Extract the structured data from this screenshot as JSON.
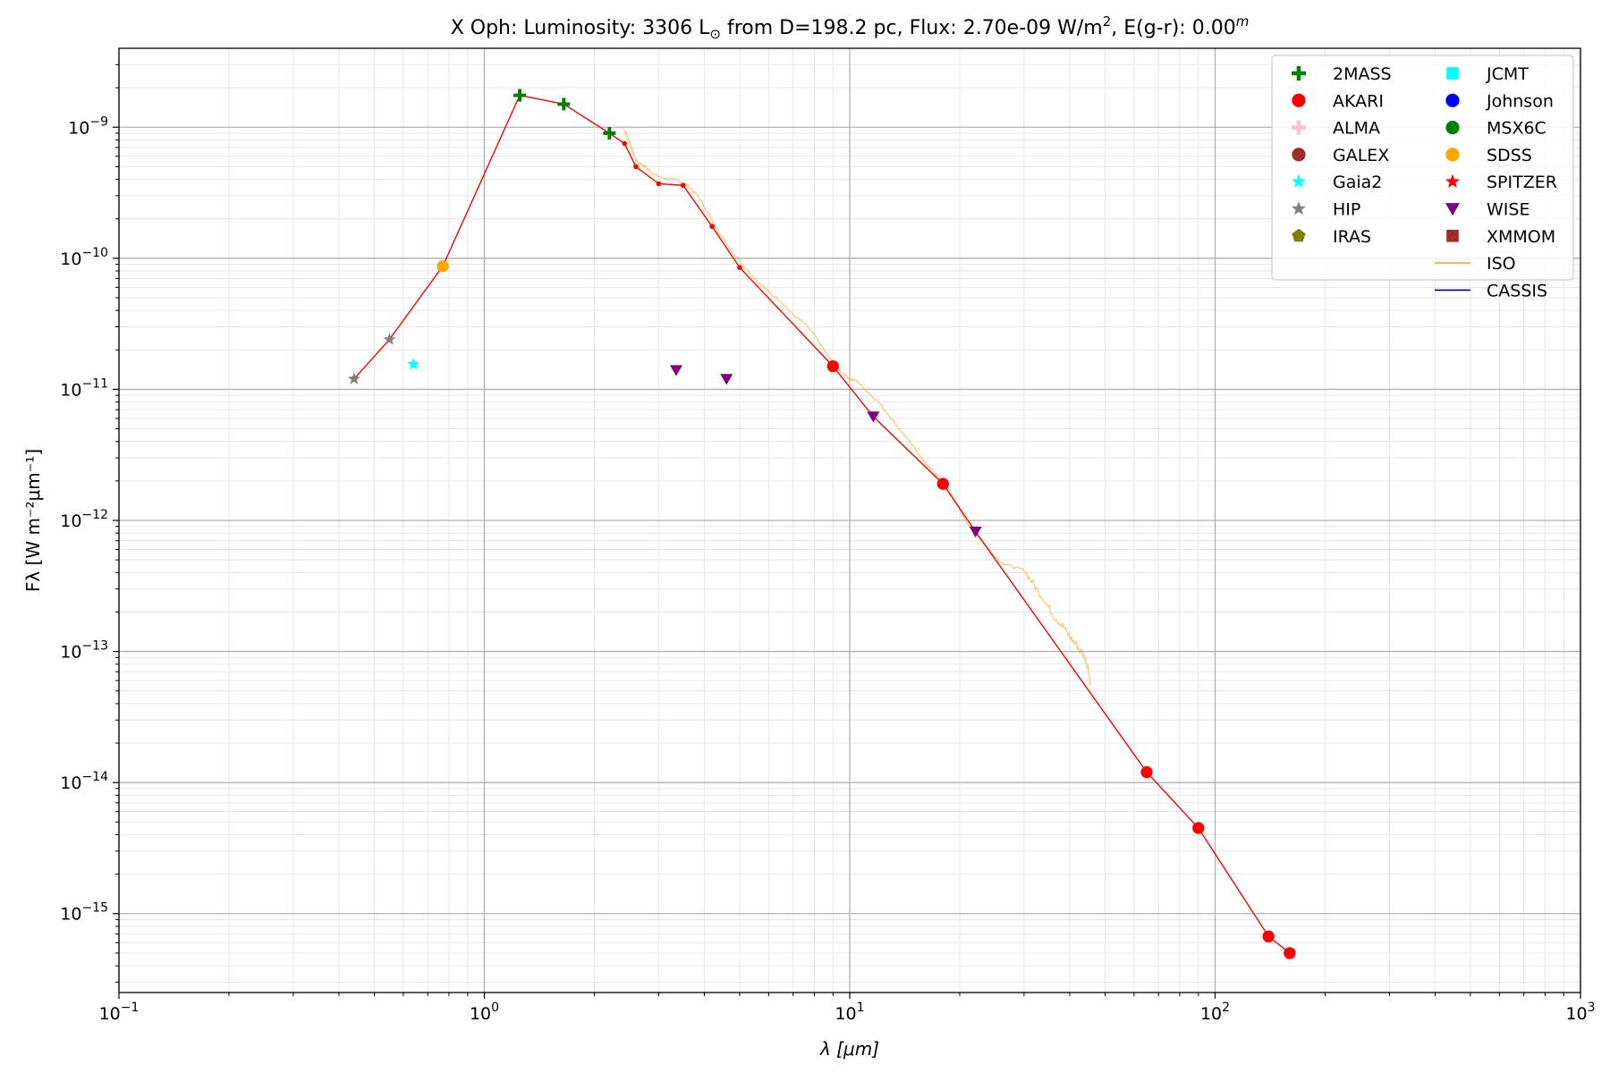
{
  "chart_data": {
    "type": "scatter",
    "title": "X Oph:  Luminosity: 3306 L⊙ from D=198.2 pc, Flux: 2.70e-09 W/m², E(g-r): 0.00ᵐ",
    "title_parts": {
      "a": "X Oph:  Luminosity: 3306 L",
      "sun": "⊙",
      "b": " from D=198.2 pc, Flux: 2.70e-09 W/m",
      "sup2": "2",
      "c": ", E(g-r): 0.00",
      "supm": "m"
    },
    "xlabel": "λ [μm]",
    "ylabel": "Fλ [W m⁻²μm⁻¹]",
    "xscale": "log",
    "yscale": "log",
    "xlim": [
      0.1,
      1000
    ],
    "ylim": [
      2.5e-16,
      4e-09
    ],
    "x_ticks": [
      {
        "v": 0.1,
        "base": "10",
        "exp": "−1"
      },
      {
        "v": 1,
        "base": "10",
        "exp": "0"
      },
      {
        "v": 10,
        "base": "10",
        "exp": "1"
      },
      {
        "v": 100,
        "base": "10",
        "exp": "2"
      },
      {
        "v": 1000,
        "base": "10",
        "exp": "3"
      }
    ],
    "y_ticks": [
      {
        "v": 1e-15,
        "base": "10",
        "exp": "−15"
      },
      {
        "v": 1e-14,
        "base": "10",
        "exp": "−14"
      },
      {
        "v": 1e-13,
        "base": "10",
        "exp": "−13"
      },
      {
        "v": 1e-12,
        "base": "10",
        "exp": "−12"
      },
      {
        "v": 1e-11,
        "base": "10",
        "exp": "−11"
      },
      {
        "v": 1e-10,
        "base": "10",
        "exp": "−10"
      },
      {
        "v": 1e-09,
        "base": "10",
        "exp": "−9"
      }
    ],
    "grid": true,
    "legend_position": "top-right",
    "model_line": {
      "color": "#ff0000",
      "points": [
        [
          0.44,
          1.2e-11
        ],
        [
          0.55,
          2.4e-11
        ],
        [
          0.77,
          8.7e-11
        ],
        [
          1.25,
          1.75e-09
        ],
        [
          1.65,
          1.5e-09
        ],
        [
          2.2,
          9e-10
        ],
        [
          2.42,
          7.5e-10
        ],
        [
          2.6,
          5e-10
        ],
        [
          3.0,
          3.7e-10
        ],
        [
          3.5,
          3.6e-10
        ],
        [
          4.2,
          1.75e-10
        ],
        [
          5.0,
          8.5e-11
        ],
        [
          9.0,
          1.5e-11
        ],
        [
          11.6,
          6.2e-12
        ],
        [
          18.0,
          1.9e-12
        ],
        [
          22.1,
          8.2e-13
        ],
        [
          65,
          1.2e-14
        ],
        [
          90,
          4.5e-15
        ],
        [
          140,
          6.7e-16
        ],
        [
          160,
          5e-16
        ]
      ]
    },
    "iso_spectrum": {
      "color": "#f5a623",
      "points": [
        [
          2.4,
          1e-09
        ],
        [
          2.45,
          8.8e-10
        ],
        [
          2.5,
          7.6e-10
        ],
        [
          2.55,
          6.4e-10
        ],
        [
          2.6,
          5.6e-10
        ],
        [
          2.7,
          5.2e-10
        ],
        [
          2.8,
          4.8e-10
        ],
        [
          2.9,
          4.4e-10
        ],
        [
          3.0,
          4.2e-10
        ],
        [
          3.2,
          4e-10
        ],
        [
          3.4,
          3.9e-10
        ],
        [
          3.6,
          3.6e-10
        ],
        [
          3.8,
          3.1e-10
        ],
        [
          4.0,
          2.5e-10
        ],
        [
          4.3,
          1.7e-10
        ],
        [
          4.6,
          1.3e-10
        ],
        [
          5.0,
          9.5e-11
        ],
        [
          5.5,
          7e-11
        ],
        [
          6.0,
          5.5e-11
        ],
        [
          6.5,
          4.7e-11
        ],
        [
          7.0,
          3.7e-11
        ],
        [
          7.5,
          3.2e-11
        ],
        [
          8.0,
          2.6e-11
        ],
        [
          8.5,
          2e-11
        ],
        [
          9.0,
          1.6e-11
        ],
        [
          9.5,
          1.35e-11
        ],
        [
          10.0,
          1.2e-11
        ],
        [
          10.5,
          1.15e-11
        ],
        [
          11.0,
          1e-11
        ],
        [
          12.0,
          8e-12
        ],
        [
          13.0,
          6e-12
        ],
        [
          14.0,
          4.6e-12
        ],
        [
          15.0,
          3.6e-12
        ],
        [
          16.0,
          2.8e-12
        ],
        [
          17.0,
          2.3e-12
        ],
        [
          18.0,
          2e-12
        ],
        [
          19.0,
          1.55e-12
        ],
        [
          20.0,
          1.2e-12
        ],
        [
          21.0,
          9.5e-13
        ],
        [
          22.0,
          8.2e-13
        ],
        [
          24.0,
          6e-13
        ],
        [
          26.0,
          4.8e-13
        ],
        [
          28.0,
          4.4e-13
        ],
        [
          30.0,
          4.2e-13
        ],
        [
          32.0,
          3.2e-13
        ],
        [
          34.0,
          2.5e-13
        ],
        [
          36.0,
          1.9e-13
        ],
        [
          38.0,
          1.6e-13
        ],
        [
          40.0,
          1.3e-13
        ],
        [
          42.0,
          1.1e-13
        ],
        [
          44.0,
          9e-14
        ],
        [
          45.0,
          7.5e-14
        ],
        [
          45.5,
          5.5e-14
        ]
      ]
    },
    "series": [
      {
        "name": "2MASS",
        "color": "#008000",
        "marker": "plus",
        "points": [
          [
            1.25,
            1.75e-09
          ],
          [
            1.65,
            1.5e-09
          ],
          [
            2.2,
            9e-10
          ]
        ]
      },
      {
        "name": "AKARI",
        "color": "#ff0000",
        "marker": "circle",
        "points": [
          [
            9.0,
            1.5e-11
          ],
          [
            18.0,
            1.9e-12
          ],
          [
            65,
            1.2e-14
          ],
          [
            90,
            4.5e-15
          ],
          [
            140,
            6.7e-16
          ],
          [
            160,
            5e-16
          ]
        ]
      },
      {
        "name": "ALMA",
        "color": "#ffc0cb",
        "marker": "plus",
        "points": []
      },
      {
        "name": "GALEX",
        "color": "#a52a2a",
        "marker": "circle",
        "points": []
      },
      {
        "name": "Gaia2",
        "color": "#00ffff",
        "marker": "star",
        "points": [
          [
            0.64,
            1.55e-11
          ]
        ]
      },
      {
        "name": "HIP",
        "color": "#808080",
        "marker": "star",
        "points": [
          [
            0.44,
            1.2e-11
          ],
          [
            0.55,
            2.4e-11
          ]
        ]
      },
      {
        "name": "IRAS",
        "color": "#808000",
        "marker": "pentagon",
        "points": []
      },
      {
        "name": "JCMT",
        "color": "#00ffff",
        "marker": "square",
        "points": []
      },
      {
        "name": "Johnson",
        "color": "#0000ff",
        "marker": "circle",
        "points": []
      },
      {
        "name": "MSX6C",
        "color": "#008000",
        "marker": "circle",
        "points": []
      },
      {
        "name": "SDSS",
        "color": "#ffa500",
        "marker": "circle",
        "points": [
          [
            0.77,
            8.7e-11
          ]
        ]
      },
      {
        "name": "SPITZER",
        "color": "#ff0000",
        "marker": "star",
        "points": []
      },
      {
        "name": "WISE",
        "color": "#800080",
        "marker": "triangle-down",
        "points": [
          [
            3.35,
            1.4e-11
          ],
          [
            4.6,
            1.2e-11
          ],
          [
            11.6,
            6.2e-12
          ],
          [
            22.1,
            8.2e-13
          ]
        ]
      },
      {
        "name": "XMMOM",
        "color": "#a52a2a",
        "marker": "square",
        "points": []
      }
    ],
    "legend_lines": [
      {
        "name": "ISO",
        "color": "#f5a623"
      },
      {
        "name": "CASSIS",
        "color": "#00008b"
      }
    ]
  }
}
